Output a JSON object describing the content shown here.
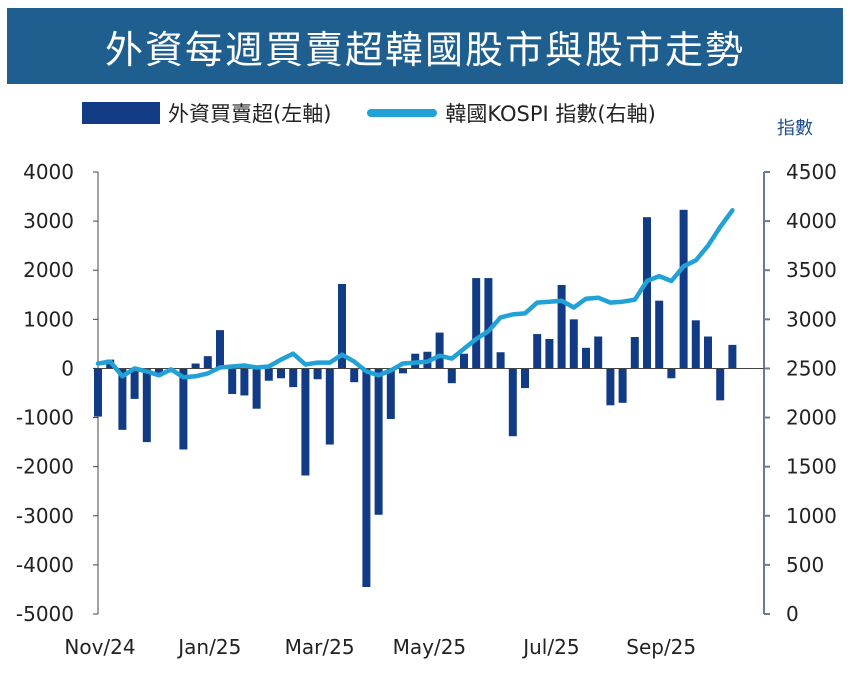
{
  "chart_data": {
    "type": "bar+line",
    "title": "外資每週買賣超韓國股市與股市走勢",
    "series": [
      {
        "name": "外資買賣超(左軸)",
        "type": "bar",
        "axis": "left",
        "values": [
          -980,
          180,
          -1250,
          -620,
          -1500,
          -120,
          -80,
          -1650,
          100,
          250,
          780,
          -520,
          -550,
          -820,
          -250,
          -200,
          -380,
          -2180,
          -220,
          -1550,
          1720,
          -280,
          -4450,
          -2980,
          -1030,
          -100,
          300,
          340,
          730,
          -300,
          300,
          1840,
          1840,
          330,
          -1380,
          -400,
          700,
          600,
          1700,
          1000,
          420,
          650,
          -750,
          -700,
          640,
          3080,
          1380,
          -200,
          3230,
          980,
          650,
          -650,
          480
        ]
      },
      {
        "name": "韓國KOSPI 指數(右軸)",
        "type": "line",
        "axis": "right",
        "values": [
          2550,
          2570,
          2420,
          2500,
          2470,
          2430,
          2490,
          2410,
          2420,
          2450,
          2510,
          2520,
          2530,
          2510,
          2520,
          2590,
          2650,
          2540,
          2560,
          2560,
          2640,
          2570,
          2470,
          2430,
          2480,
          2550,
          2560,
          2570,
          2630,
          2600,
          2700,
          2800,
          2880,
          3020,
          3050,
          3060,
          3170,
          3180,
          3190,
          3120,
          3210,
          3220,
          3170,
          3180,
          3200,
          3390,
          3440,
          3390,
          3540,
          3600,
          3750,
          3940,
          4110
        ]
      }
    ],
    "x_tick_labels": [
      "Nov/24",
      "Jan/25",
      "Mar/25",
      "May/25",
      "Jul/25",
      "Sep/25"
    ],
    "x_tick_positions": [
      0,
      9,
      18,
      27,
      37,
      46
    ],
    "left_axis": {
      "min": -5000,
      "max": 4000,
      "step": 1000
    },
    "right_axis": {
      "min": 0,
      "max": 4500,
      "step": 500,
      "unit_label": "指數"
    },
    "colors": {
      "bar": "#123b85",
      "line": "#21a1d6",
      "right_axis": "#6b7a99",
      "title_bg": "#1f5f8f"
    }
  }
}
